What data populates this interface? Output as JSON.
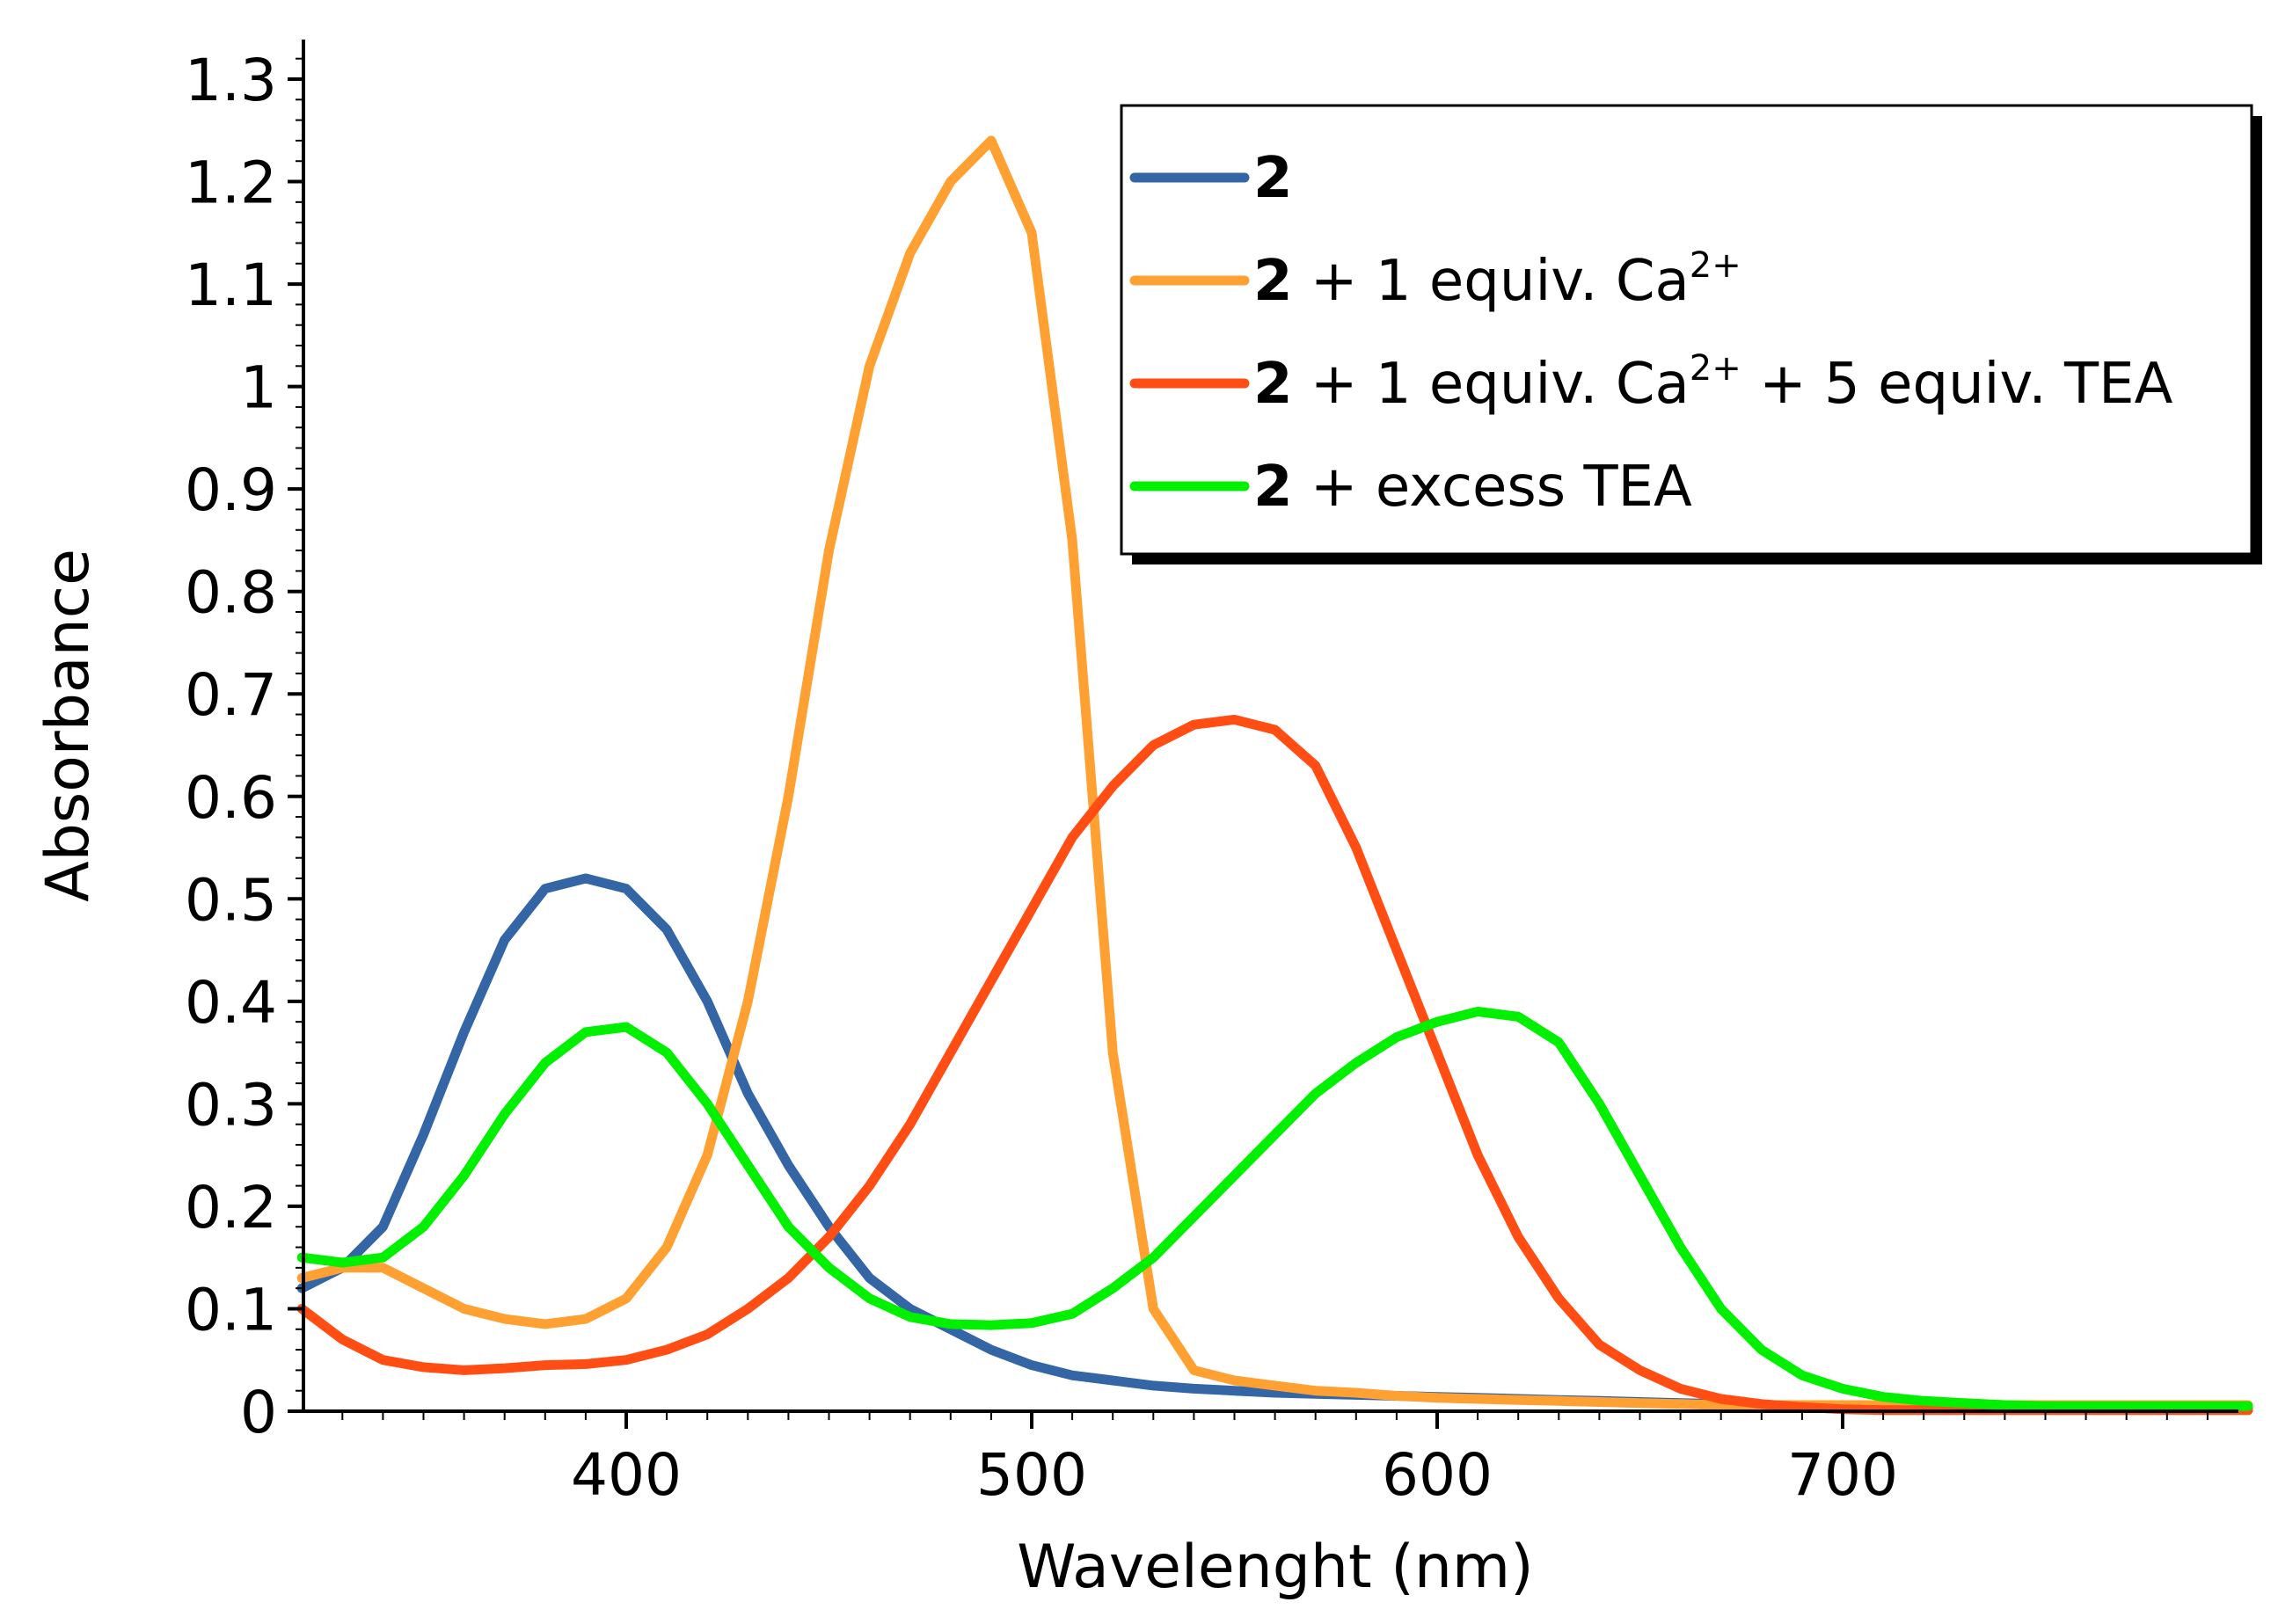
{
  "chart_data": {
    "type": "line",
    "title": "",
    "xlabel": "Wavelenght (nm)",
    "ylabel": "Absorbance",
    "xlim": [
      320,
      800
    ],
    "ylim": [
      0,
      1.34
    ],
    "x_ticks": [
      400,
      500,
      600,
      700
    ],
    "y_ticks": [
      0,
      0.1,
      0.2,
      0.3,
      0.4,
      0.5,
      0.6,
      0.7,
      0.8,
      0.9,
      1,
      1.1,
      1.2,
      1.3
    ],
    "x_tick_labels": [
      "400",
      "500",
      "600",
      "700"
    ],
    "y_tick_labels": [
      "0",
      "0.1",
      "0.2",
      "0.3",
      "0.4",
      "0.5",
      "0.6",
      "0.7",
      "0.8",
      "0.9",
      "1",
      "1.1",
      "1.2",
      "1.3"
    ],
    "grid": false,
    "legend_position": "top-right",
    "x": [
      320,
      330,
      340,
      350,
      360,
      370,
      380,
      390,
      400,
      410,
      420,
      430,
      440,
      450,
      460,
      470,
      480,
      490,
      500,
      510,
      520,
      530,
      540,
      550,
      560,
      570,
      580,
      590,
      600,
      610,
      620,
      630,
      640,
      650,
      660,
      670,
      680,
      690,
      700,
      710,
      720,
      730,
      740,
      750,
      760,
      770,
      780,
      790,
      800
    ],
    "series": [
      {
        "name": "2",
        "label_bold": "2",
        "label_rest": "",
        "label_sup": "",
        "label_tail": "",
        "color": "#3465a4",
        "values": [
          0.12,
          0.14,
          0.18,
          0.27,
          0.37,
          0.46,
          0.51,
          0.52,
          0.51,
          0.47,
          0.4,
          0.31,
          0.24,
          0.18,
          0.13,
          0.1,
          0.08,
          0.06,
          0.045,
          0.035,
          0.03,
          0.025,
          0.022,
          0.02,
          0.018,
          0.017,
          0.016,
          0.015,
          0.014,
          0.013,
          0.012,
          0.011,
          0.01,
          0.009,
          0.008,
          0.007,
          0.006,
          0.005,
          0.004,
          0.004,
          0.004,
          0.004,
          0.004,
          0.004,
          0.004,
          0.004,
          0.004,
          0.004,
          0.004
        ]
      },
      {
        "name": "2 + 1 equiv. Ca2+",
        "label_bold": "2",
        "label_rest": " + 1 equiv. Ca",
        "label_sup": "2+",
        "label_tail": "",
        "color": "#ffa033",
        "values": [
          0.13,
          0.14,
          0.14,
          0.12,
          0.1,
          0.09,
          0.085,
          0.09,
          0.11,
          0.16,
          0.25,
          0.4,
          0.6,
          0.84,
          1.02,
          1.13,
          1.2,
          1.24,
          1.15,
          0.85,
          0.35,
          0.1,
          0.04,
          0.03,
          0.025,
          0.02,
          0.018,
          0.015,
          0.013,
          0.012,
          0.011,
          0.01,
          0.009,
          0.008,
          0.007,
          0.006,
          0.006,
          0.006,
          0.006,
          0.006,
          0.006,
          0.006,
          0.006,
          0.006,
          0.006,
          0.006,
          0.006,
          0.006,
          0.006
        ]
      },
      {
        "name": "2 + 1 equiv. Ca2+ + 5 equiv. TEA",
        "label_bold": "2",
        "label_rest": " + 1 equiv. Ca",
        "label_sup": "2+",
        "label_tail": " + 5 equiv. TEA",
        "color": "#ff4d14",
        "values": [
          0.1,
          0.07,
          0.05,
          0.043,
          0.04,
          0.042,
          0.045,
          0.046,
          0.05,
          0.06,
          0.075,
          0.1,
          0.13,
          0.17,
          0.22,
          0.28,
          0.35,
          0.42,
          0.49,
          0.56,
          0.61,
          0.65,
          0.67,
          0.675,
          0.665,
          0.63,
          0.55,
          0.45,
          0.35,
          0.25,
          0.17,
          0.11,
          0.065,
          0.04,
          0.022,
          0.012,
          0.007,
          0.004,
          0.002,
          0.001,
          0.001,
          0.001,
          0.001,
          0.001,
          0.001,
          0.001,
          0.001,
          0.001,
          0.001
        ]
      },
      {
        "name": "2 + excess TEA",
        "label_bold": "2",
        "label_rest": " + excess TEA",
        "label_sup": "",
        "label_tail": "",
        "color": "#00f000",
        "values": [
          0.15,
          0.145,
          0.15,
          0.18,
          0.23,
          0.29,
          0.34,
          0.37,
          0.375,
          0.35,
          0.3,
          0.24,
          0.18,
          0.14,
          0.11,
          0.092,
          0.085,
          0.084,
          0.086,
          0.095,
          0.12,
          0.15,
          0.19,
          0.23,
          0.27,
          0.31,
          0.34,
          0.365,
          0.38,
          0.39,
          0.385,
          0.36,
          0.3,
          0.23,
          0.16,
          0.1,
          0.06,
          0.035,
          0.022,
          0.014,
          0.01,
          0.008,
          0.006,
          0.005,
          0.005,
          0.005,
          0.005,
          0.005,
          0.005
        ]
      }
    ]
  }
}
